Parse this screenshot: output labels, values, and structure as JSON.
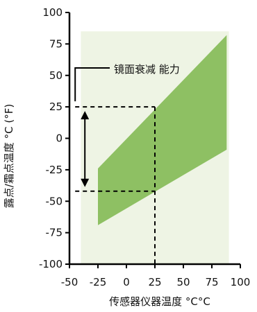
{
  "chart_data": {
    "type": "area",
    "xlabel": "传感器仪器温度 °C°C",
    "ylabel": "露点/霜点温度 °C (°F)",
    "x_ticks": [
      -50,
      -25,
      0,
      25,
      50,
      75,
      100
    ],
    "y_ticks": [
      -100,
      -75,
      -50,
      -25,
      0,
      25,
      50,
      75,
      100
    ],
    "xlim": [
      -50,
      100
    ],
    "ylim": [
      -100,
      100
    ],
    "grid": false,
    "background_region": {
      "x": [
        -40,
        90
      ],
      "y": [
        -100,
        85
      ],
      "color": "#eef4e4"
    },
    "series": [
      {
        "type": "band",
        "color": "#8ec063",
        "x": [
          -25,
          88
        ],
        "upper": [
          -24,
          82
        ],
        "lower": [
          -69,
          -9
        ]
      }
    ],
    "annotations": [
      {
        "text": "镜面衰减 能力",
        "type": "range-arrow",
        "x": -45,
        "y_range": [
          -42,
          25
        ],
        "guide_x": 25
      }
    ],
    "colors": {
      "axis": "#000000",
      "band": "#8ec063",
      "background": "#eef4e4"
    }
  }
}
